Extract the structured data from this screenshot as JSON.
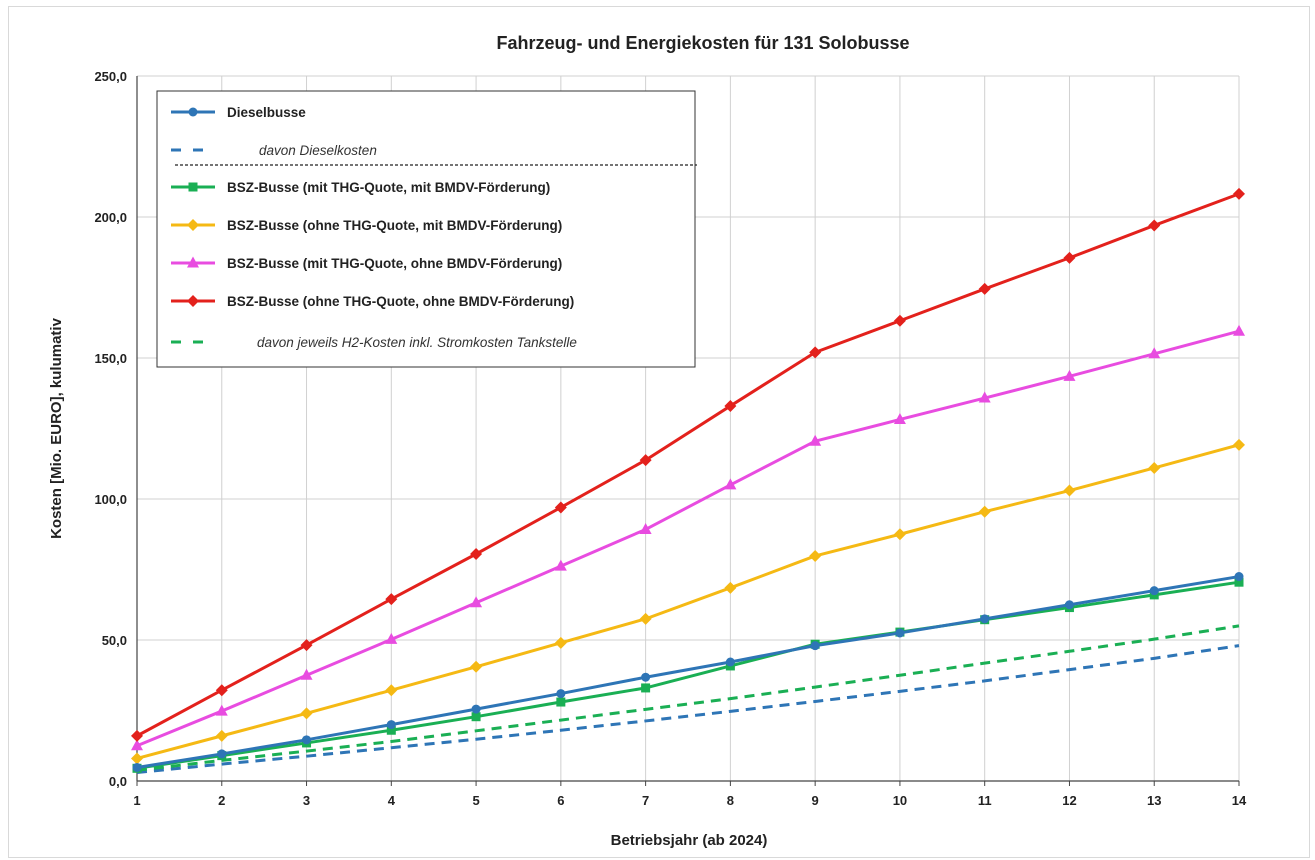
{
  "chart_data": {
    "type": "line",
    "title": "Fahrzeug- und Energiekosten für 131 Solobusse",
    "xlabel": "Betriebsjahr (ab 2024)",
    "ylabel": "Kosten [Mio. EURO], kulumativ",
    "x": [
      1,
      2,
      3,
      4,
      5,
      6,
      7,
      8,
      9,
      10,
      11,
      12,
      13,
      14
    ],
    "x_tick_labels": [
      "1",
      "2",
      "3",
      "4",
      "5",
      "6",
      "7",
      "8",
      "9",
      "10",
      "11",
      "12",
      "13",
      "14"
    ],
    "ylim": [
      0,
      250
    ],
    "y_ticks": [
      0,
      50,
      100,
      150,
      200,
      250
    ],
    "y_tick_labels": [
      "0,0",
      "50,0",
      "100,0",
      "150,0",
      "200,0",
      "250,0"
    ],
    "grid": true,
    "legend_position": "top-left",
    "series": [
      {
        "name": "Dieselbusse",
        "color": "#2e75b6",
        "style": "solid",
        "marker": "circle",
        "values": [
          4.8,
          9.6,
          14.6,
          20.0,
          25.5,
          31.0,
          36.8,
          42.2,
          48.0,
          52.5,
          57.5,
          62.5,
          67.5,
          72.5
        ]
      },
      {
        "name": "davon Dieselkosten",
        "color": "#2e75b6",
        "style": "dashed",
        "marker": "none",
        "values": [
          3.0,
          6.0,
          8.8,
          11.8,
          14.8,
          18.0,
          21.3,
          24.7,
          28.2,
          31.8,
          35.5,
          39.5,
          43.5,
          48.0
        ]
      },
      {
        "name": "BSZ-Busse (mit THG-Quote, mit BMDV-Förderung)",
        "color": "#1aaf54",
        "style": "solid",
        "marker": "square",
        "values": [
          4.5,
          9.0,
          13.5,
          18.0,
          22.8,
          28.0,
          33.0,
          40.8,
          48.5,
          52.8,
          57.2,
          61.5,
          66.0,
          70.5
        ]
      },
      {
        "name": "BSZ-Busse (ohne THG-Quote, mit BMDV-Förderung)",
        "color": "#f5b914",
        "style": "solid",
        "marker": "diamond",
        "values": [
          8.0,
          16.0,
          24.0,
          32.2,
          40.5,
          49.0,
          57.5,
          68.5,
          79.8,
          87.5,
          95.5,
          103.0,
          111.0,
          119.2
        ]
      },
      {
        "name": "BSZ-Busse (mit THG-Quote, ohne BMDV-Förderung)",
        "color": "#e84ce0",
        "style": "solid",
        "marker": "triangle",
        "values": [
          12.5,
          24.8,
          37.5,
          50.2,
          63.2,
          76.2,
          89.2,
          105.0,
          120.5,
          128.2,
          135.8,
          143.5,
          151.5,
          159.5
        ]
      },
      {
        "name": "BSZ-Busse (ohne THG-Quote, ohne BMDV-Förderung)",
        "color": "#e3211c",
        "style": "solid",
        "marker": "diamond",
        "values": [
          16.0,
          32.2,
          48.2,
          64.5,
          80.5,
          97.0,
          113.8,
          133.0,
          152.0,
          163.2,
          174.5,
          185.5,
          197.0,
          208.2
        ]
      },
      {
        "name": "davon jeweils H2-Kosten inkl. Stromkosten Tankstelle",
        "color": "#1aaf54",
        "style": "dashed",
        "marker": "none",
        "values": [
          3.8,
          7.3,
          10.6,
          14.0,
          17.8,
          21.6,
          25.4,
          29.2,
          33.3,
          37.5,
          41.8,
          46.0,
          50.3,
          55.0
        ]
      }
    ],
    "legend_order": [
      0,
      1,
      "separator",
      2,
      3,
      4,
      5,
      6
    ]
  }
}
